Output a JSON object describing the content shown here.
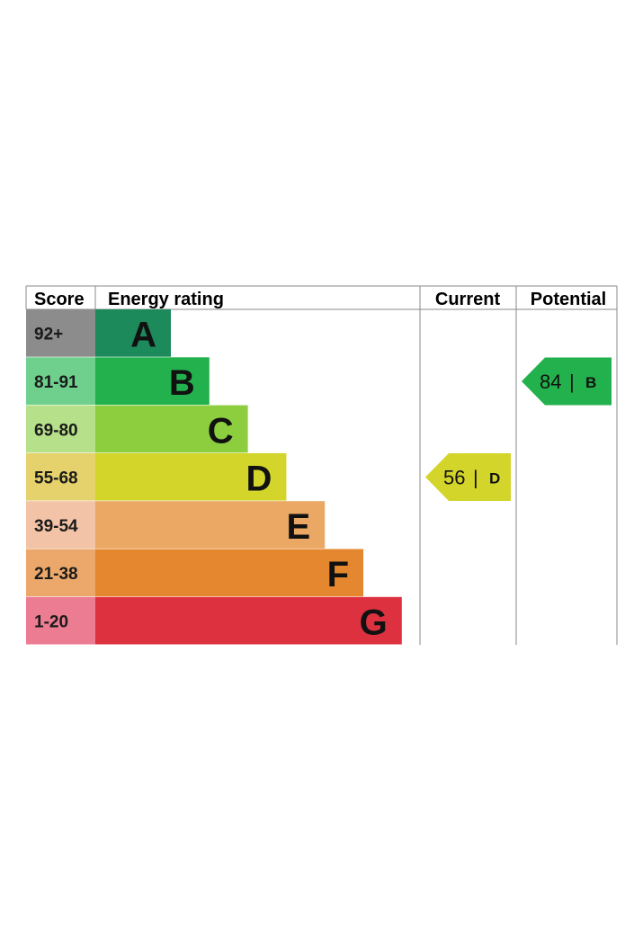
{
  "chart_data": {
    "type": "bar",
    "headers": {
      "score": "Score",
      "rating": "Energy rating",
      "current": "Current",
      "potential": "Potential"
    },
    "bands": [
      {
        "letter": "A",
        "score": "92+",
        "min": 92,
        "max": 100,
        "color": "#1c8a5a",
        "score_bg": "#8c8c8c"
      },
      {
        "letter": "B",
        "score": "81-91",
        "min": 81,
        "max": 91,
        "color": "#22b14c",
        "score_bg": "#6fcf8d"
      },
      {
        "letter": "C",
        "score": "69-80",
        "min": 69,
        "max": 80,
        "color": "#8cce3e",
        "score_bg": "#b6e08a"
      },
      {
        "letter": "D",
        "score": "55-68",
        "min": 55,
        "max": 68,
        "color": "#d3d52a",
        "score_bg": "#e6d26c"
      },
      {
        "letter": "E",
        "score": "39-54",
        "min": 39,
        "max": 54,
        "color": "#eaa864",
        "score_bg": "#f2c3a6"
      },
      {
        "letter": "F",
        "score": "21-38",
        "min": 21,
        "max": 38,
        "color": "#e5872e",
        "score_bg": "#eca86a"
      },
      {
        "letter": "G",
        "score": "1-20",
        "min": 1,
        "max": 20,
        "color": "#dd3140",
        "score_bg": "#ec7c92"
      }
    ],
    "current": {
      "value": "56",
      "letter": "D",
      "separator": "|",
      "color": "#d3d52a"
    },
    "potential": {
      "value": "84",
      "letter": "B",
      "separator": "|",
      "color": "#22b14c"
    }
  }
}
